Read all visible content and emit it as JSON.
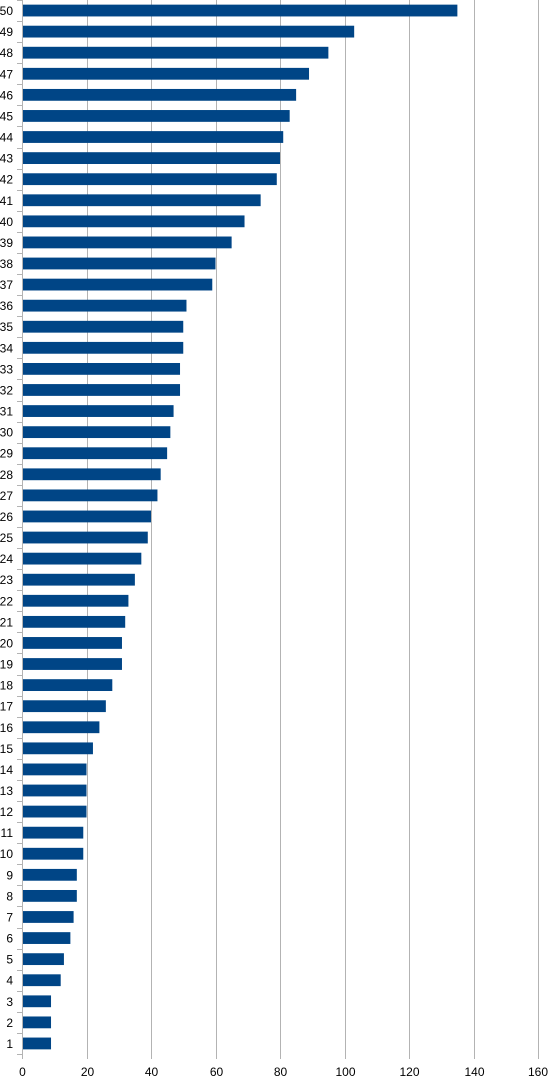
{
  "chart_data": {
    "type": "bar",
    "orientation": "horizontal",
    "title": "",
    "xlabel": "",
    "ylabel": "",
    "xlim": [
      0,
      160
    ],
    "x_ticks": [
      0,
      20,
      40,
      60,
      80,
      100,
      120,
      140,
      160
    ],
    "grid": true,
    "legend": "none",
    "bar_color": "#004586",
    "grid_color": "#b3b3b3",
    "categories": [
      "1",
      "2",
      "3",
      "4",
      "5",
      "6",
      "7",
      "8",
      "9",
      "10",
      "11",
      "12",
      "13",
      "14",
      "15",
      "16",
      "17",
      "18",
      "19",
      "20",
      "21",
      "22",
      "23",
      "24",
      "25",
      "26",
      "27",
      "28",
      "29",
      "30",
      "31",
      "32",
      "33",
      "34",
      "35",
      "36",
      "37",
      "38",
      "39",
      "40",
      "41",
      "42",
      "43",
      "44",
      "45",
      "46",
      "47",
      "48",
      "49",
      "50"
    ],
    "values": [
      9,
      9,
      9,
      12,
      13,
      15,
      16,
      17,
      17,
      19,
      19,
      20,
      20,
      20,
      22,
      24,
      26,
      28,
      31,
      31,
      32,
      33,
      35,
      37,
      39,
      40,
      42,
      43,
      45,
      46,
      47,
      49,
      49,
      50,
      50,
      51,
      59,
      60,
      65,
      69,
      74,
      79,
      80,
      81,
      83,
      85,
      89,
      95,
      103,
      135
    ]
  }
}
